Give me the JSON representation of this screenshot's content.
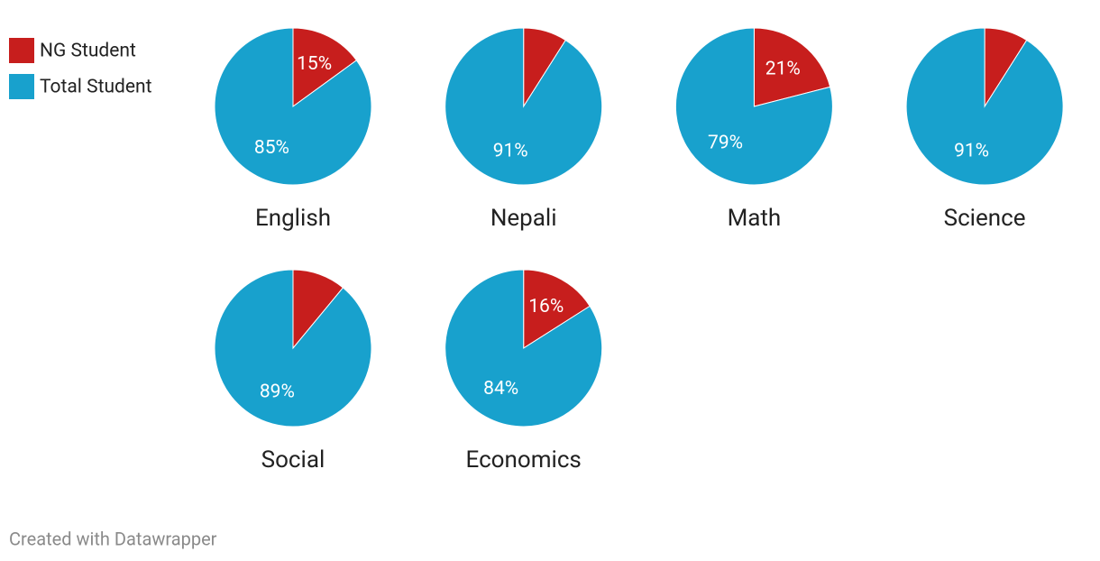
{
  "chart_data": [
    {
      "type": "pie",
      "title": "English",
      "categories": [
        "NG Student",
        "Total Student"
      ],
      "colors": [
        "#c71e1d",
        "#18a1cd"
      ],
      "values": [
        15,
        85
      ],
      "value_labels": [
        "15%",
        "85%"
      ]
    },
    {
      "type": "pie",
      "title": "Nepali",
      "categories": [
        "NG Student",
        "Total Student"
      ],
      "colors": [
        "#c71e1d",
        "#18a1cd"
      ],
      "values": [
        9,
        91
      ],
      "value_labels": [
        null,
        "91%"
      ]
    },
    {
      "type": "pie",
      "title": "Math",
      "categories": [
        "NG Student",
        "Total Student"
      ],
      "colors": [
        "#c71e1d",
        "#18a1cd"
      ],
      "values": [
        21,
        79
      ],
      "value_labels": [
        "21%",
        "79%"
      ]
    },
    {
      "type": "pie",
      "title": "Science",
      "categories": [
        "NG Student",
        "Total Student"
      ],
      "colors": [
        "#c71e1d",
        "#18a1cd"
      ],
      "values": [
        9,
        91
      ],
      "value_labels": [
        null,
        "91%"
      ]
    },
    {
      "type": "pie",
      "title": "Social",
      "categories": [
        "NG Student",
        "Total Student"
      ],
      "colors": [
        "#c71e1d",
        "#18a1cd"
      ],
      "values": [
        11,
        89
      ],
      "value_labels": [
        null,
        "89%"
      ]
    },
    {
      "type": "pie",
      "title": "Economics",
      "categories": [
        "NG Student",
        "Total Student"
      ],
      "colors": [
        "#c71e1d",
        "#18a1cd"
      ],
      "values": [
        16,
        84
      ],
      "value_labels": [
        "16%",
        "84%"
      ]
    }
  ],
  "credit": "Created with Datawrapper"
}
